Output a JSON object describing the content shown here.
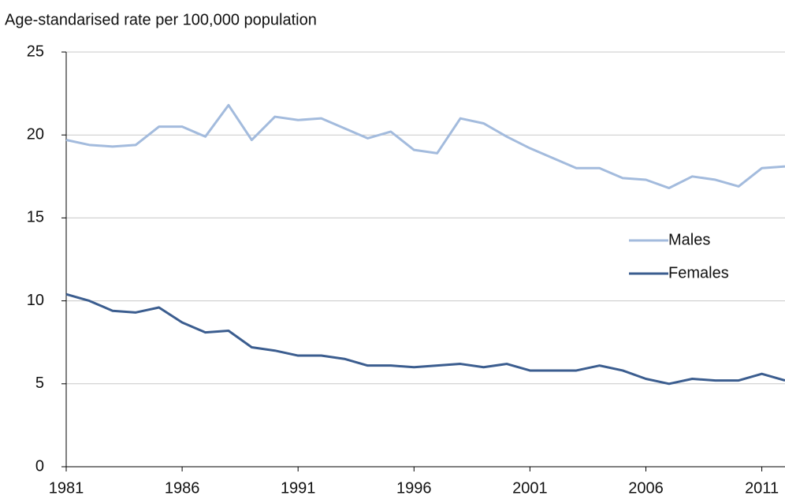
{
  "chart_data": {
    "type": "line",
    "title": "Age-standarised rate per 100,000  population",
    "x": [
      1981,
      1982,
      1983,
      1984,
      1985,
      1986,
      1987,
      1988,
      1989,
      1990,
      1991,
      1992,
      1993,
      1994,
      1995,
      1996,
      1997,
      1998,
      1999,
      2000,
      2001,
      2002,
      2003,
      2004,
      2005,
      2006,
      2007,
      2008,
      2009,
      2010,
      2011,
      2012
    ],
    "series": [
      {
        "name": "Males",
        "color": "#a3bbdd",
        "values": [
          19.7,
          19.4,
          19.3,
          19.4,
          20.5,
          20.5,
          19.9,
          21.8,
          19.7,
          21.1,
          20.9,
          21.0,
          20.4,
          19.8,
          20.2,
          19.1,
          18.9,
          21.0,
          20.7,
          19.9,
          19.2,
          18.6,
          18.0,
          18.0,
          17.4,
          17.3,
          16.8,
          17.5,
          17.3,
          16.9,
          18.0,
          18.1
        ]
      },
      {
        "name": "Females",
        "color": "#3b5d8f",
        "values": [
          10.4,
          10.0,
          9.4,
          9.3,
          9.6,
          8.7,
          8.1,
          8.2,
          7.2,
          7.0,
          6.7,
          6.7,
          6.5,
          6.1,
          6.1,
          6.0,
          6.1,
          6.2,
          6.0,
          6.2,
          5.8,
          5.8,
          5.8,
          6.1,
          5.8,
          5.3,
          5.0,
          5.3,
          5.2,
          5.2,
          5.6,
          5.2
        ]
      }
    ],
    "xlim": [
      1981,
      2012
    ],
    "xticks": [
      1981,
      1986,
      1991,
      1996,
      2001,
      2006,
      2011
    ],
    "ylim": [
      0,
      25
    ],
    "yticks": [
      0,
      5,
      10,
      15,
      20,
      25
    ],
    "grid": true,
    "legend": "right"
  }
}
